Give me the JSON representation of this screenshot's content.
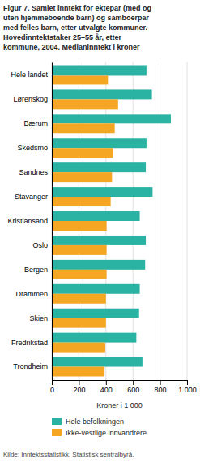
{
  "chart_data": {
    "type": "bar",
    "orientation": "horizontal",
    "title": [
      "Figur 7. Samlet inntekt for ektepar (med og",
      "uten hjemmeboende barn) og samboerpar",
      "med felles barn, etter utvalgte kommuner.",
      "Hovedinntektstaker 25–55 år, etter",
      "kommune, 2004. Medianinntekt i kroner"
    ],
    "categories": [
      "Hele landet",
      "Lørenskog",
      "Bærum",
      "Skedsmo",
      "Sandnes",
      "Stavanger",
      "Kristiansand",
      "Oslo",
      "Bergen",
      "Drammen",
      "Skien",
      "Fredrikstad",
      "Trondheim"
    ],
    "series": [
      {
        "name": "Hele befolkningen",
        "color": "#2ab3a3",
        "values": [
          700,
          740,
          880,
          700,
          695,
          745,
          650,
          695,
          690,
          650,
          645,
          625,
          670
        ]
      },
      {
        "name": "Ikke-vestlige innvandrere",
        "color": "#f5a623",
        "values": [
          415,
          490,
          465,
          450,
          445,
          435,
          405,
          405,
          405,
          400,
          400,
          395,
          390
        ]
      }
    ],
    "xlabel": "Kroner i 1 000",
    "xlim": [
      0,
      1000
    ],
    "xticks": [
      0,
      200,
      400,
      600,
      800,
      {
        "value": 1000,
        "label": "1 000"
      }
    ],
    "grid": true,
    "legend": "bottom",
    "source": "Kilde: Inntektsstatistikk, Statistisk sentralbyrå."
  }
}
